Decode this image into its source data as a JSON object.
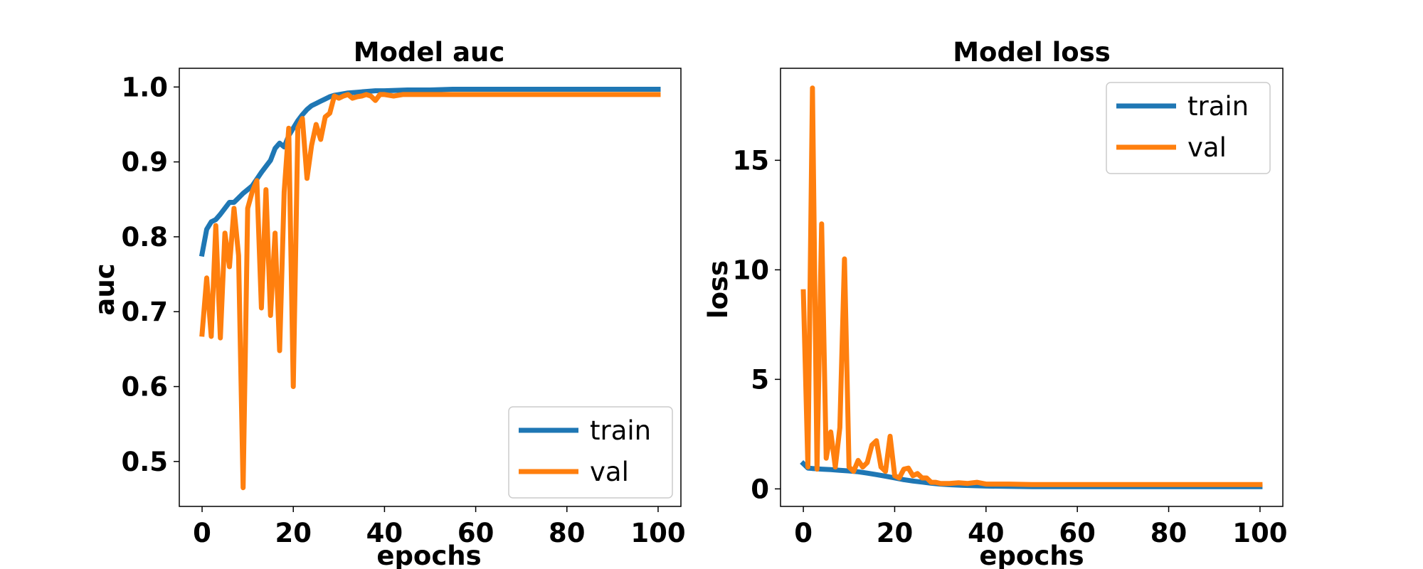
{
  "colors": {
    "train": "#1f77b4",
    "val": "#ff7f0e",
    "frame": "#000000",
    "legend_border": "#cccccc"
  },
  "chart_data": [
    {
      "type": "line",
      "title": "Model auc",
      "xlabel": "epochs",
      "ylabel": "auc",
      "xlim": [
        -5,
        105
      ],
      "ylim": [
        0.44,
        1.025
      ],
      "xticks": [
        0,
        20,
        40,
        60,
        80,
        100
      ],
      "xtick_labels": [
        "0",
        "20",
        "40",
        "60",
        "80",
        "100"
      ],
      "yticks": [
        0.5,
        0.6,
        0.7,
        0.8,
        0.9,
        1.0
      ],
      "ytick_labels": [
        "0.5",
        "0.6",
        "0.7",
        "0.8",
        "0.9",
        "1.0"
      ],
      "grid": false,
      "legend_position": "lower-right",
      "series": [
        {
          "name": "train",
          "x": [
            0,
            1,
            2,
            3,
            4,
            5,
            6,
            7,
            8,
            9,
            10,
            11,
            12,
            13,
            14,
            15,
            16,
            17,
            18,
            19,
            20,
            21,
            22,
            23,
            24,
            25,
            26,
            27,
            28,
            29,
            30,
            32,
            34,
            36,
            38,
            40,
            45,
            50,
            55,
            60,
            65,
            70,
            75,
            80,
            85,
            90,
            95,
            100
          ],
          "y": [
            0.777,
            0.81,
            0.82,
            0.823,
            0.83,
            0.838,
            0.846,
            0.846,
            0.852,
            0.858,
            0.863,
            0.868,
            0.877,
            0.886,
            0.894,
            0.902,
            0.918,
            0.925,
            0.92,
            0.935,
            0.945,
            0.955,
            0.963,
            0.97,
            0.975,
            0.978,
            0.981,
            0.984,
            0.987,
            0.989,
            0.99,
            0.992,
            0.993,
            0.994,
            0.995,
            0.995,
            0.996,
            0.996,
            0.997,
            0.997,
            0.997,
            0.997,
            0.997,
            0.997,
            0.997,
            0.997,
            0.997,
            0.997
          ]
        },
        {
          "name": "val",
          "x": [
            0,
            1,
            2,
            3,
            4,
            5,
            6,
            7,
            8,
            9,
            10,
            11,
            12,
            13,
            14,
            15,
            16,
            17,
            18,
            19,
            20,
            21,
            22,
            23,
            24,
            25,
            26,
            27,
            28,
            29,
            30,
            31,
            32,
            33,
            34,
            35,
            36,
            37,
            38,
            39,
            40,
            42,
            44,
            46,
            48,
            50,
            55,
            60,
            65,
            70,
            75,
            80,
            85,
            90,
            95,
            100
          ],
          "y": [
            0.67,
            0.745,
            0.667,
            0.815,
            0.665,
            0.805,
            0.76,
            0.838,
            0.775,
            0.465,
            0.838,
            0.86,
            0.875,
            0.705,
            0.863,
            0.695,
            0.805,
            0.648,
            0.86,
            0.945,
            0.6,
            0.945,
            0.958,
            0.878,
            0.922,
            0.95,
            0.93,
            0.96,
            0.965,
            0.988,
            0.985,
            0.988,
            0.99,
            0.985,
            0.987,
            0.988,
            0.99,
            0.988,
            0.982,
            0.99,
            0.99,
            0.988,
            0.99,
            0.99,
            0.99,
            0.99,
            0.99,
            0.99,
            0.99,
            0.99,
            0.99,
            0.99,
            0.99,
            0.99,
            0.99,
            0.99
          ]
        }
      ]
    },
    {
      "type": "line",
      "title": "Model loss",
      "xlabel": "epochs",
      "ylabel": "loss",
      "xlim": [
        -5,
        105
      ],
      "ylim": [
        -0.8,
        19.2
      ],
      "xticks": [
        0,
        20,
        40,
        60,
        80,
        100
      ],
      "xtick_labels": [
        "0",
        "20",
        "40",
        "60",
        "80",
        "100"
      ],
      "yticks": [
        0,
        5,
        10,
        15
      ],
      "ytick_labels": [
        "0",
        "5",
        "10",
        "15"
      ],
      "grid": false,
      "legend_position": "upper-right",
      "series": [
        {
          "name": "train",
          "x": [
            0,
            1,
            2,
            4,
            6,
            8,
            10,
            12,
            14,
            16,
            18,
            20,
            22,
            24,
            26,
            28,
            30,
            32,
            35,
            40,
            50,
            60,
            70,
            80,
            90,
            100
          ],
          "y": [
            1.15,
            0.95,
            0.93,
            0.9,
            0.88,
            0.85,
            0.82,
            0.78,
            0.72,
            0.65,
            0.58,
            0.5,
            0.42,
            0.36,
            0.31,
            0.26,
            0.22,
            0.19,
            0.16,
            0.13,
            0.1,
            0.1,
            0.1,
            0.1,
            0.1,
            0.1
          ]
        },
        {
          "name": "val",
          "x": [
            0,
            1,
            2,
            3,
            4,
            5,
            6,
            7,
            8,
            9,
            10,
            11,
            12,
            13,
            14,
            15,
            16,
            17,
            18,
            19,
            20,
            21,
            22,
            23,
            24,
            25,
            26,
            27,
            28,
            29,
            30,
            32,
            34,
            36,
            38,
            40,
            45,
            50,
            60,
            70,
            80,
            90,
            100
          ],
          "y": [
            9.0,
            1.0,
            18.3,
            0.9,
            12.1,
            1.4,
            2.6,
            1.0,
            2.8,
            10.5,
            1.0,
            0.8,
            1.3,
            1.0,
            1.2,
            2.0,
            2.2,
            1.0,
            0.8,
            2.4,
            0.6,
            0.5,
            0.9,
            0.95,
            0.6,
            0.7,
            0.5,
            0.5,
            0.3,
            0.3,
            0.25,
            0.25,
            0.28,
            0.25,
            0.3,
            0.22,
            0.22,
            0.2,
            0.2,
            0.2,
            0.2,
            0.2,
            0.2
          ]
        }
      ]
    }
  ]
}
